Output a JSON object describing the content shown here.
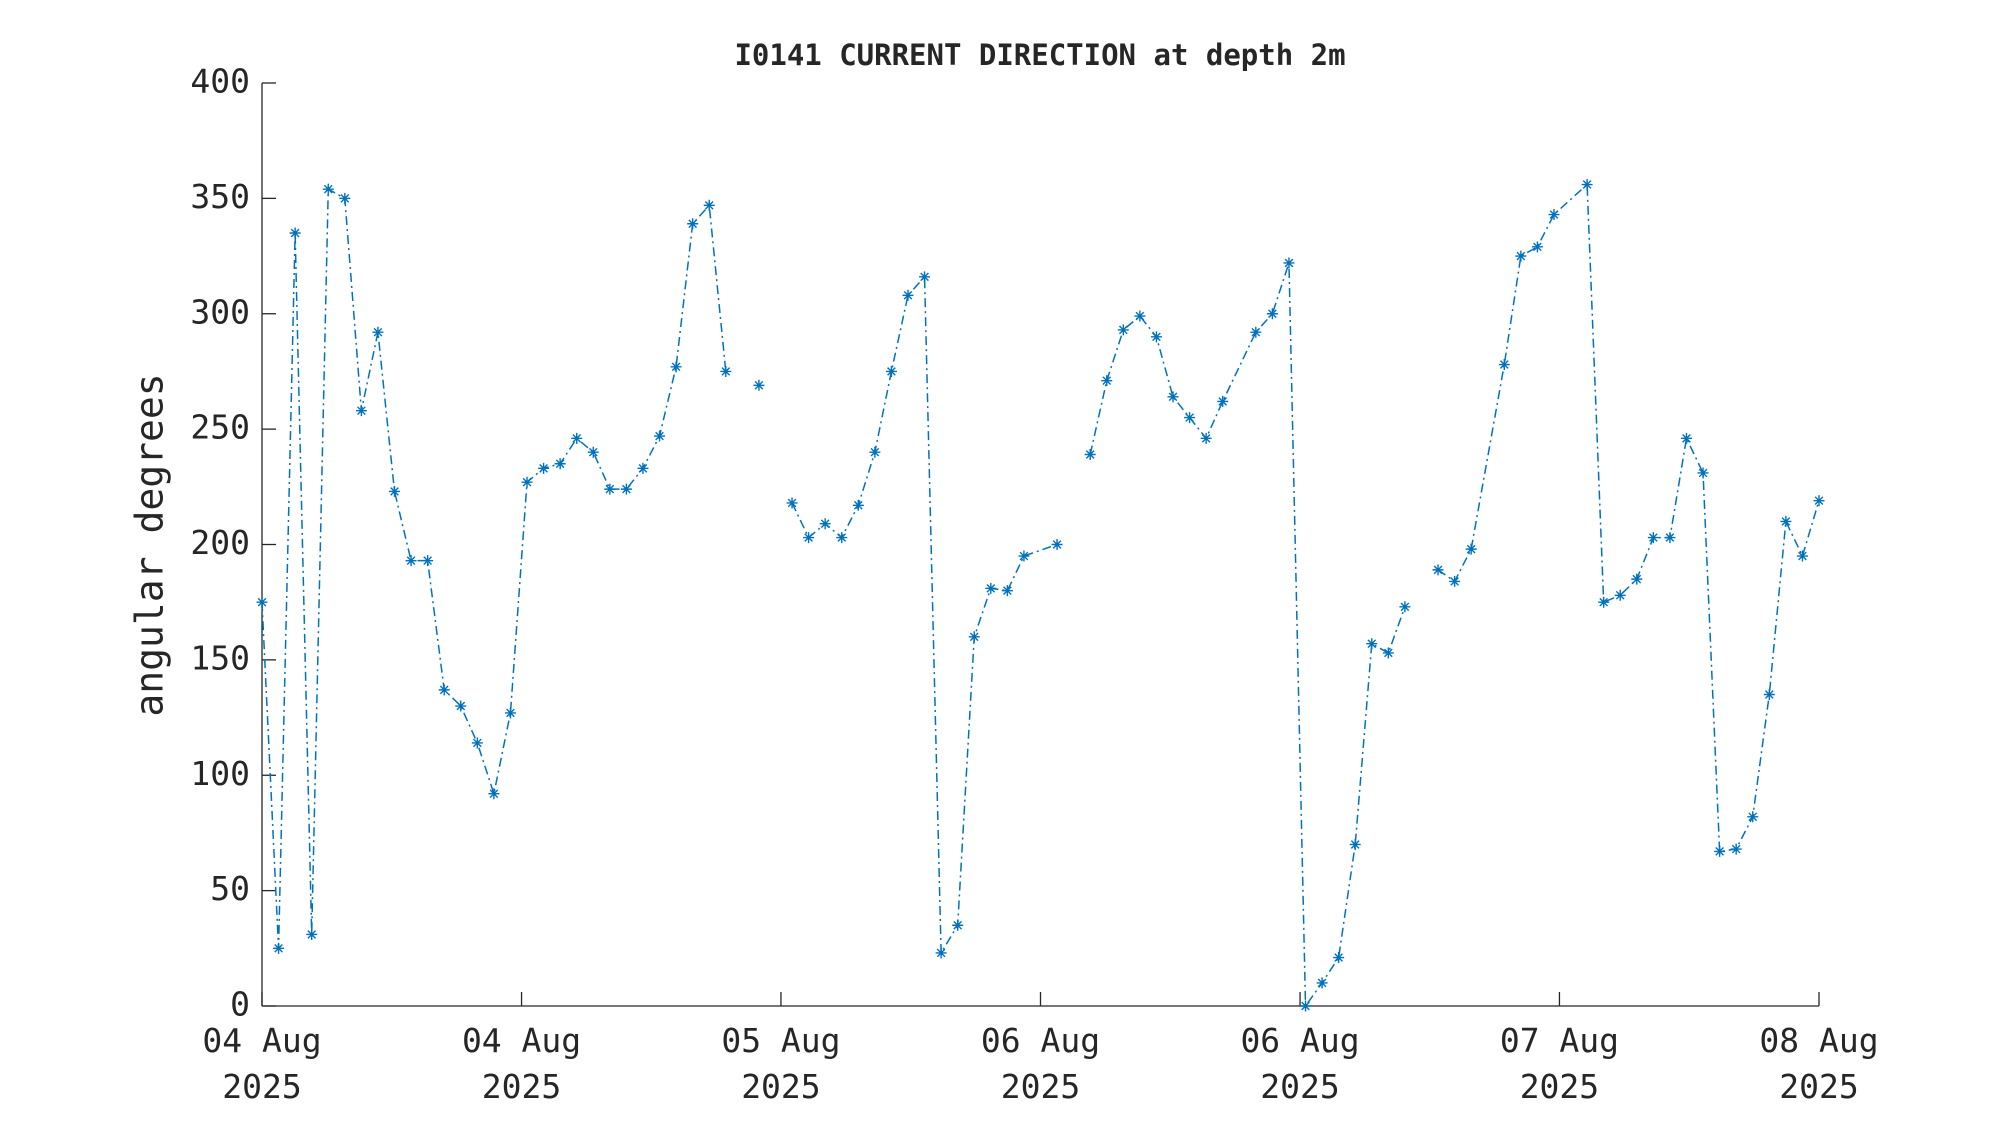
{
  "chart_data": {
    "type": "line",
    "title": "I0141 CURRENT DIRECTION at depth 2m",
    "y_label": "angular degrees",
    "x": [
      0,
      1,
      2,
      3,
      4,
      5,
      6,
      7,
      8,
      9,
      10,
      11,
      12,
      13,
      14,
      15,
      16,
      17,
      18,
      19,
      20,
      21,
      22,
      23,
      24,
      25,
      26,
      27,
      28,
      29,
      30,
      31,
      32,
      33,
      34,
      35,
      36,
      37,
      38,
      39,
      40,
      41,
      42,
      43,
      44,
      45,
      46,
      48,
      49,
      50,
      51,
      52,
      53,
      54,
      55,
      56,
      57,
      58,
      60,
      61,
      62,
      63,
      64,
      65,
      66,
      67,
      68,
      69,
      70,
      71,
      72,
      73,
      75,
      76,
      77,
      78,
      80,
      81,
      82,
      83,
      84,
      85,
      86,
      87,
      88,
      89,
      90,
      91,
      92,
      93,
      94
    ],
    "series": [
      {
        "name": "current direction",
        "color": "#0072bd",
        "values": [
          175,
          25,
          335,
          31,
          354,
          350,
          258,
          292,
          223,
          193,
          193,
          137,
          130,
          114,
          92,
          127,
          227,
          233,
          235,
          246,
          240,
          224,
          224,
          233,
          247,
          277,
          339,
          347,
          275,
          null,
          269,
          null,
          218,
          203,
          209,
          203,
          217,
          240,
          275,
          308,
          316,
          23,
          35,
          160,
          181,
          180,
          195,
          200,
          null,
          239,
          271,
          293,
          299,
          290,
          264,
          255,
          246,
          262,
          292,
          300,
          322,
          0,
          10,
          21,
          70,
          157,
          153,
          173,
          null,
          189,
          184,
          198,
          278,
          325,
          329,
          343,
          356,
          175,
          178,
          185,
          203,
          203,
          246,
          231,
          67,
          68,
          82,
          135,
          210,
          195,
          219
        ]
      }
    ],
    "xlim": [
      0,
      94
    ],
    "xticks": [
      {
        "value": 0,
        "label": "04 Aug\n2025"
      },
      {
        "value": 15.67,
        "label": "04 Aug\n2025"
      },
      {
        "value": 31.33,
        "label": "05 Aug\n2025"
      },
      {
        "value": 47,
        "label": "06 Aug\n2025"
      },
      {
        "value": 62.67,
        "label": "06 Aug\n2025"
      },
      {
        "value": 78.33,
        "label": "07 Aug\n2025"
      },
      {
        "value": 94,
        "label": "08 Aug\n2025"
      }
    ],
    "ylim": [
      0,
      400
    ],
    "yticks": [
      0,
      50,
      100,
      150,
      200,
      250,
      300,
      350,
      400
    ]
  }
}
